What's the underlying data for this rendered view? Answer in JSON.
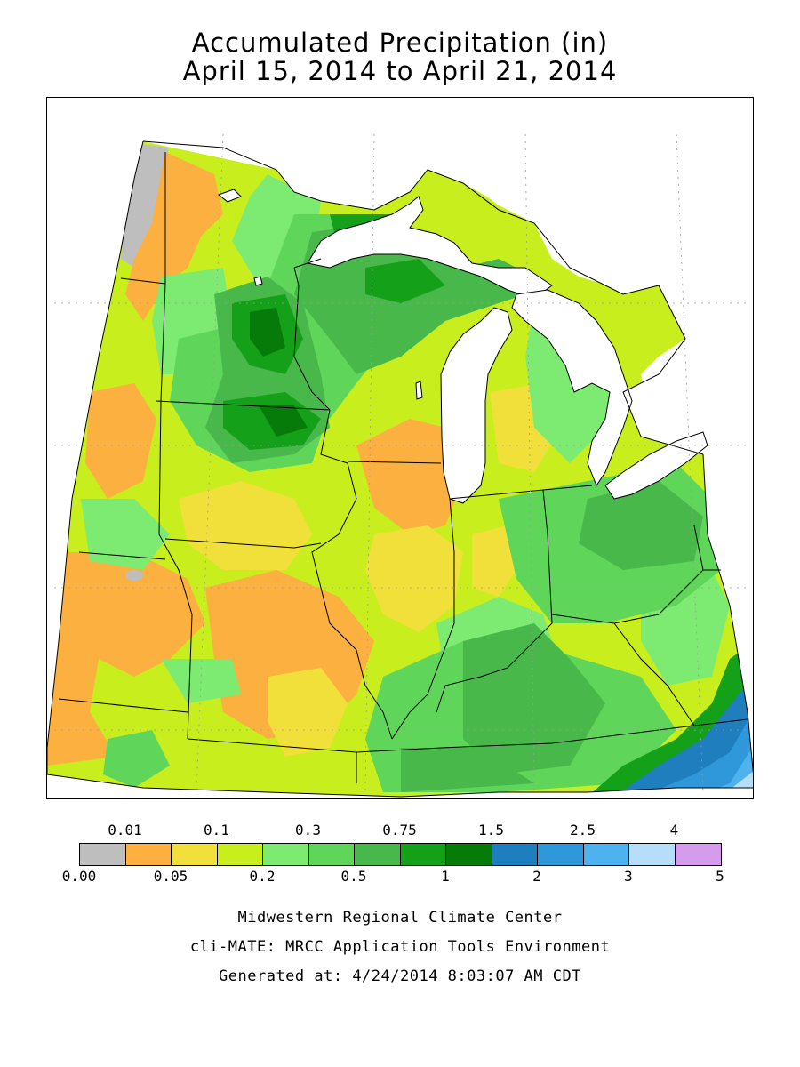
{
  "header": {
    "title": "Accumulated Precipitation (in)",
    "date_range": "April 15, 2014 to April 21, 2014"
  },
  "map": {
    "unit": "in",
    "colors": {
      "water": "#ffffff",
      "borders": "#000000",
      "outside": "#ffffff"
    }
  },
  "legend": {
    "top_labels": [
      "0.01",
      "0.1",
      "0.3",
      "0.75",
      "1.5",
      "2.5",
      "4"
    ],
    "bottom_labels": [
      "0.00",
      "0.05",
      "0.2",
      "0.5",
      "1",
      "2",
      "3",
      "5"
    ],
    "bins": [
      {
        "color": "#bebebe"
      },
      {
        "color": "#fbb040"
      },
      {
        "color": "#f2e03a"
      },
      {
        "color": "#c9ee1e"
      },
      {
        "color": "#7deb72"
      },
      {
        "color": "#5fd65a"
      },
      {
        "color": "#48b84a"
      },
      {
        "color": "#14a018"
      },
      {
        "color": "#067b09"
      },
      {
        "color": "#1f7ebd"
      },
      {
        "color": "#2f98da"
      },
      {
        "color": "#4db2ee"
      },
      {
        "color": "#b6def8"
      },
      {
        "color": "#d59bec"
      }
    ]
  },
  "footer": {
    "organization": "Midwestern Regional Climate Center",
    "tool": "cli-MATE: MRCC Application Tools Environment",
    "generated": "Generated at: 4/24/2014 8:03:07 AM CDT"
  }
}
